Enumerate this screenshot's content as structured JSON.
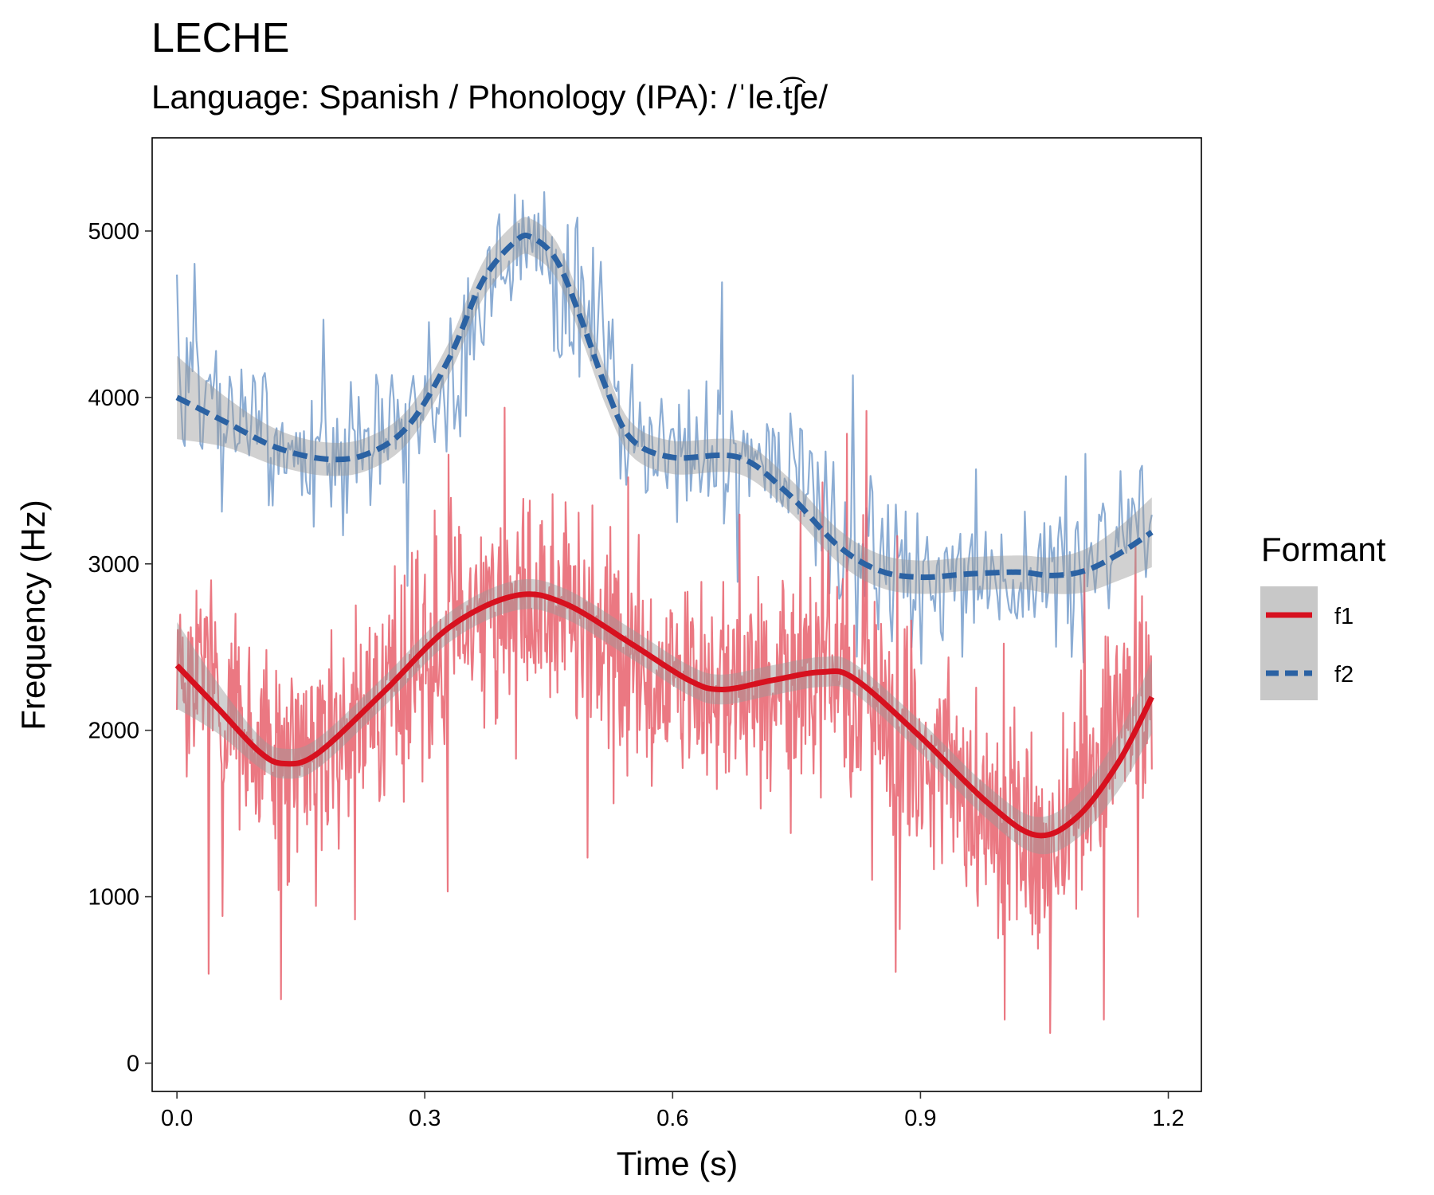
{
  "chart_data": {
    "type": "line",
    "title": "LECHE",
    "subtitle": "Language: Spanish / Phonology (IPA): /ˈle.t͡ʃe/",
    "xlabel": "Time (s)",
    "ylabel": "Frequency (Hz)",
    "xlim": [
      -0.03,
      1.24
    ],
    "ylim": [
      -170,
      5560
    ],
    "x_ticks": [
      0.0,
      0.3,
      0.6,
      0.9,
      1.2
    ],
    "x_tick_labels": [
      "0.0",
      "0.3",
      "0.6",
      "0.9",
      "1.2"
    ],
    "y_ticks": [
      0,
      1000,
      2000,
      3000,
      4000,
      5000
    ],
    "y_tick_labels": [
      "0",
      "1000",
      "2000",
      "3000",
      "4000",
      "5000"
    ],
    "grid": false,
    "legend": {
      "title": "Formant",
      "placement": "right",
      "entries": [
        "f1",
        "f2"
      ]
    },
    "colors": {
      "f1": "#d7111f",
      "f1_raw": "#e8606c",
      "f2": "#2b62a3",
      "f2_raw": "#6f98c9",
      "ci_band": "#999999"
    },
    "raw_series": [
      {
        "name": "f1",
        "x_start": 0.0,
        "x_end": 1.18,
        "points": 1200,
        "baseline": [
          [
            0.0,
            2400
          ],
          [
            0.13,
            1800
          ],
          [
            0.41,
            2800
          ],
          [
            0.65,
            2250
          ],
          [
            0.78,
            2350
          ],
          [
            1.04,
            1350
          ],
          [
            1.18,
            2200
          ]
        ],
        "spread": 800,
        "y_min": 60,
        "y_max": 5000
      },
      {
        "name": "f2",
        "x_start": 0.0,
        "x_end": 1.18,
        "points": 500,
        "baseline": [
          [
            0.0,
            4000
          ],
          [
            0.18,
            3620
          ],
          [
            0.3,
            3900
          ],
          [
            0.42,
            4950
          ],
          [
            0.48,
            4600
          ],
          [
            0.57,
            3680
          ],
          [
            0.68,
            3650
          ],
          [
            0.89,
            2930
          ],
          [
            1.05,
            2950
          ],
          [
            1.18,
            3200
          ]
        ],
        "spread": 520,
        "y_min": 2400,
        "y_max": 5300
      }
    ],
    "series": [
      {
        "name": "f1",
        "x": [
          0.0,
          0.05,
          0.1,
          0.13,
          0.17,
          0.25,
          0.33,
          0.41,
          0.47,
          0.55,
          0.62,
          0.66,
          0.72,
          0.78,
          0.82,
          0.9,
          0.98,
          1.04,
          1.09,
          1.14,
          1.18
        ],
        "values": [
          2390,
          2130,
          1870,
          1800,
          1860,
          2230,
          2620,
          2810,
          2760,
          2520,
          2300,
          2245,
          2300,
          2350,
          2310,
          1960,
          1570,
          1370,
          1480,
          1810,
          2200
        ],
        "ci_halfwidth": [
          260,
          150,
          95,
          90,
          90,
          90,
          90,
          90,
          90,
          90,
          90,
          90,
          90,
          90,
          90,
          95,
          100,
          110,
          130,
          170,
          220
        ]
      },
      {
        "name": "f2",
        "x": [
          0.0,
          0.06,
          0.12,
          0.18,
          0.23,
          0.28,
          0.33,
          0.37,
          0.41,
          0.43,
          0.46,
          0.49,
          0.52,
          0.55,
          0.6,
          0.68,
          0.74,
          0.8,
          0.85,
          0.9,
          0.96,
          1.02,
          1.06,
          1.1,
          1.14,
          1.18
        ],
        "values": [
          4000,
          3850,
          3700,
          3630,
          3660,
          3830,
          4240,
          4700,
          4940,
          4960,
          4820,
          4460,
          4050,
          3750,
          3640,
          3640,
          3420,
          3110,
          2960,
          2920,
          2940,
          2950,
          2930,
          2960,
          3060,
          3190
        ],
        "ci_halfwidth": [
          250,
          150,
          110,
          100,
          100,
          100,
          100,
          110,
          110,
          110,
          110,
          110,
          110,
          100,
          100,
          100,
          100,
          100,
          100,
          100,
          100,
          100,
          110,
          130,
          160,
          210
        ]
      }
    ]
  }
}
